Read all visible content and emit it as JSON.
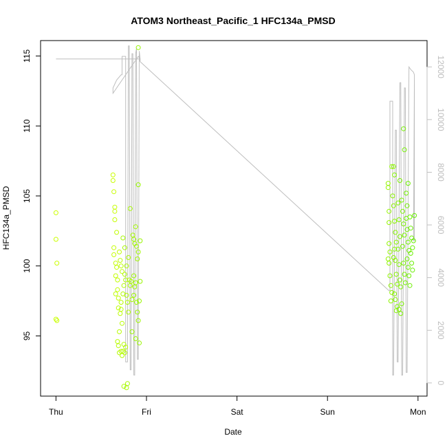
{
  "chart_data": {
    "type": "scatter",
    "title": "ATOM3 Northeast_Pacific_1 HFC134a_PMSD",
    "xlabel": "Date",
    "ylabel": "HFC134a_PMSD",
    "x_unit": "days since Thu 00:00",
    "xlim": [
      -0.17,
      4.1
    ],
    "ylim": [
      90.7,
      116.1
    ],
    "x_ticks": [
      {
        "x": 0,
        "label": "Thu"
      },
      {
        "x": 1,
        "label": "Fri"
      },
      {
        "x": 2,
        "label": "Sat"
      },
      {
        "x": 3,
        "label": "Sun"
      },
      {
        "x": 4,
        "label": "Mon"
      }
    ],
    "y_ticks": [
      95,
      100,
      105,
      110,
      115
    ],
    "right_axis": {
      "color": "#c0c0c0",
      "ylim": [
        -500,
        13000
      ],
      "ticks": [
        0,
        2000,
        4000,
        6000,
        8000,
        10000,
        12000
      ]
    },
    "series": [
      {
        "type": "scatter",
        "color_start": "#ccff00",
        "color_end": "#66ee00",
        "note": "HFC134a_PMSD values (left axis)",
        "points": [
          [
            0.0,
            103.8
          ],
          [
            0.0,
            101.9
          ],
          [
            0.01,
            100.2
          ],
          [
            0.0,
            96.2
          ],
          [
            0.01,
            96.1
          ],
          [
            0.63,
            106.5
          ],
          [
            0.63,
            106.1
          ],
          [
            0.64,
            105.3
          ],
          [
            0.65,
            103.9
          ],
          [
            0.65,
            103.3
          ],
          [
            0.65,
            104.2
          ],
          [
            0.64,
            101.3
          ],
          [
            0.64,
            100.8
          ],
          [
            0.66,
            100.2
          ],
          [
            0.67,
            99.9
          ],
          [
            0.66,
            99.3
          ],
          [
            0.68,
            99.0
          ],
          [
            0.68,
            98.3
          ],
          [
            0.69,
            97.7
          ],
          [
            0.66,
            98.0
          ],
          [
            0.67,
            102.4
          ],
          [
            0.7,
            101.0
          ],
          [
            0.71,
            100.4
          ],
          [
            0.72,
            100.0
          ],
          [
            0.73,
            99.6
          ],
          [
            0.69,
            97.0
          ],
          [
            0.71,
            96.6
          ],
          [
            0.72,
            96.9
          ],
          [
            0.72,
            97.4
          ],
          [
            0.73,
            95.9
          ],
          [
            0.7,
            95.3
          ],
          [
            0.68,
            94.6
          ],
          [
            0.69,
            94.3
          ],
          [
            0.7,
            93.8
          ],
          [
            0.72,
            93.9
          ],
          [
            0.73,
            93.6
          ],
          [
            0.74,
            93.9
          ],
          [
            0.75,
            94.4
          ],
          [
            0.76,
            93.8
          ],
          [
            0.77,
            94.2
          ],
          [
            0.74,
            98.0
          ],
          [
            0.75,
            98.6
          ],
          [
            0.76,
            99.4
          ],
          [
            0.77,
            99.0
          ],
          [
            0.78,
            97.9
          ],
          [
            0.79,
            97.4
          ],
          [
            0.8,
            96.7
          ],
          [
            0.78,
            100.0
          ],
          [
            0.8,
            100.6
          ],
          [
            0.81,
            99.0
          ],
          [
            0.82,
            98.6
          ],
          [
            0.83,
            98.9
          ],
          [
            0.84,
            97.6
          ],
          [
            0.75,
            91.4
          ],
          [
            0.78,
            91.3
          ],
          [
            0.79,
            91.6
          ],
          [
            0.76,
            101.3
          ],
          [
            0.74,
            102.0
          ],
          [
            0.82,
            104.1
          ],
          [
            0.85,
            102.2
          ],
          [
            0.86,
            101.9
          ],
          [
            0.87,
            101.6
          ],
          [
            0.88,
            102.8
          ],
          [
            0.89,
            101.4
          ],
          [
            0.9,
            100.5
          ],
          [
            0.91,
            101.0
          ],
          [
            0.86,
            99.3
          ],
          [
            0.87,
            98.5
          ],
          [
            0.88,
            98.8
          ],
          [
            0.89,
            97.4
          ],
          [
            0.9,
            96.7
          ],
          [
            0.91,
            96.1
          ],
          [
            0.86,
            97.9
          ],
          [
            0.84,
            95.3
          ],
          [
            0.88,
            94.8
          ],
          [
            0.92,
            94.5
          ],
          [
            0.93,
            98.9
          ],
          [
            0.92,
            97.5
          ],
          [
            0.93,
            101.8
          ],
          [
            0.91,
            105.8
          ],
          [
            0.91,
            115.6
          ],
          [
            3.67,
            105.9
          ],
          [
            3.67,
            105.6
          ],
          [
            3.68,
            103.9
          ],
          [
            3.68,
            103.1
          ],
          [
            3.68,
            101.6
          ],
          [
            3.69,
            101.0
          ],
          [
            3.67,
            100.5
          ],
          [
            3.68,
            100.2
          ],
          [
            3.69,
            99.3
          ],
          [
            3.7,
            98.6
          ],
          [
            3.71,
            98.1
          ],
          [
            3.7,
            97.5
          ],
          [
            3.71,
            107.1
          ],
          [
            3.73,
            107.1
          ],
          [
            3.72,
            105.0
          ],
          [
            3.73,
            104.3
          ],
          [
            3.74,
            103.2
          ],
          [
            3.75,
            102.4
          ],
          [
            3.76,
            101.7
          ],
          [
            3.74,
            101.2
          ],
          [
            3.73,
            100.6
          ],
          [
            3.75,
            100.4
          ],
          [
            3.76,
            99.4
          ],
          [
            3.77,
            98.7
          ],
          [
            3.74,
            98.0
          ],
          [
            3.75,
            97.6
          ],
          [
            3.76,
            96.8
          ],
          [
            3.77,
            97.1
          ],
          [
            3.74,
            106.5
          ],
          [
            3.78,
            104.5
          ],
          [
            3.79,
            103.3
          ],
          [
            3.8,
            102.1
          ],
          [
            3.78,
            101.2
          ],
          [
            3.79,
            100.1
          ],
          [
            3.8,
            99.0
          ],
          [
            3.81,
            98.5
          ],
          [
            3.82,
            97.3
          ],
          [
            3.79,
            96.9
          ],
          [
            3.81,
            96.6
          ],
          [
            3.8,
            106.1
          ],
          [
            3.82,
            104.7
          ],
          [
            3.83,
            103.9
          ],
          [
            3.84,
            103.0
          ],
          [
            3.85,
            102.2
          ],
          [
            3.83,
            101.4
          ],
          [
            3.84,
            100.2
          ],
          [
            3.85,
            99.4
          ],
          [
            3.86,
            98.8
          ],
          [
            3.84,
            109.8
          ],
          [
            3.85,
            108.3
          ],
          [
            3.87,
            105.2
          ],
          [
            3.88,
            104.3
          ],
          [
            3.87,
            103.4
          ],
          [
            3.88,
            102.6
          ],
          [
            3.89,
            101.7
          ],
          [
            3.9,
            101.1
          ],
          [
            3.88,
            100.5
          ],
          [
            3.89,
            99.9
          ],
          [
            3.9,
            99.3
          ],
          [
            3.91,
            98.6
          ],
          [
            3.89,
            105.9
          ],
          [
            3.91,
            103.5
          ],
          [
            3.92,
            102.7
          ],
          [
            3.93,
            102.0
          ],
          [
            3.94,
            101.3
          ],
          [
            3.92,
            100.9
          ],
          [
            3.93,
            100.2
          ],
          [
            3.94,
            99.7
          ],
          [
            3.95,
            101.8
          ],
          [
            3.96,
            103.6
          ]
        ]
      },
      {
        "type": "line",
        "color": "#bebebe",
        "axis": "right",
        "note": "altitude trace (right axis)",
        "points": [
          [
            0.0,
            12300
          ],
          [
            0.93,
            12300
          ],
          [
            0.93,
            12200
          ],
          [
            0.92,
            12350
          ],
          [
            0.91,
            12400
          ],
          [
            0.63,
            11000
          ],
          [
            0.63,
            11200
          ],
          [
            0.67,
            11500
          ],
          [
            0.72,
            11700
          ],
          [
            0.73,
            11700
          ],
          [
            0.73,
            12400
          ],
          [
            0.77,
            12400
          ],
          [
            0.77,
            800
          ],
          [
            0.79,
            800
          ],
          [
            0.8,
            12800
          ],
          [
            0.81,
            12800
          ],
          [
            0.82,
            500
          ],
          [
            0.83,
            500
          ],
          [
            0.84,
            12500
          ],
          [
            0.85,
            12500
          ],
          [
            0.86,
            300
          ],
          [
            0.87,
            300
          ],
          [
            0.88,
            12500
          ],
          [
            0.89,
            12700
          ],
          [
            0.9,
            900
          ],
          [
            0.91,
            900
          ],
          [
            0.92,
            12600
          ],
          [
            0.93,
            12300
          ],
          [
            0.93,
            12200
          ],
          [
            3.68,
            3500
          ],
          [
            3.69,
            3500
          ],
          [
            3.69,
            10700
          ],
          [
            3.72,
            10700
          ],
          [
            3.72,
            300
          ],
          [
            3.73,
            300
          ],
          [
            3.75,
            9600
          ],
          [
            3.76,
            9600
          ],
          [
            3.77,
            800
          ],
          [
            3.78,
            800
          ],
          [
            3.8,
            11400
          ],
          [
            3.81,
            11400
          ],
          [
            3.82,
            300
          ],
          [
            3.83,
            300
          ],
          [
            3.85,
            11200
          ],
          [
            3.86,
            11200
          ],
          [
            3.87,
            400
          ],
          [
            3.88,
            400
          ],
          [
            3.9,
            12000
          ],
          [
            3.92,
            11900
          ],
          [
            3.95,
            11800
          ],
          [
            3.96,
            11700
          ],
          [
            3.96,
            5400
          ],
          [
            3.95,
            5400
          ],
          [
            3.96,
            11700
          ]
        ]
      }
    ]
  }
}
